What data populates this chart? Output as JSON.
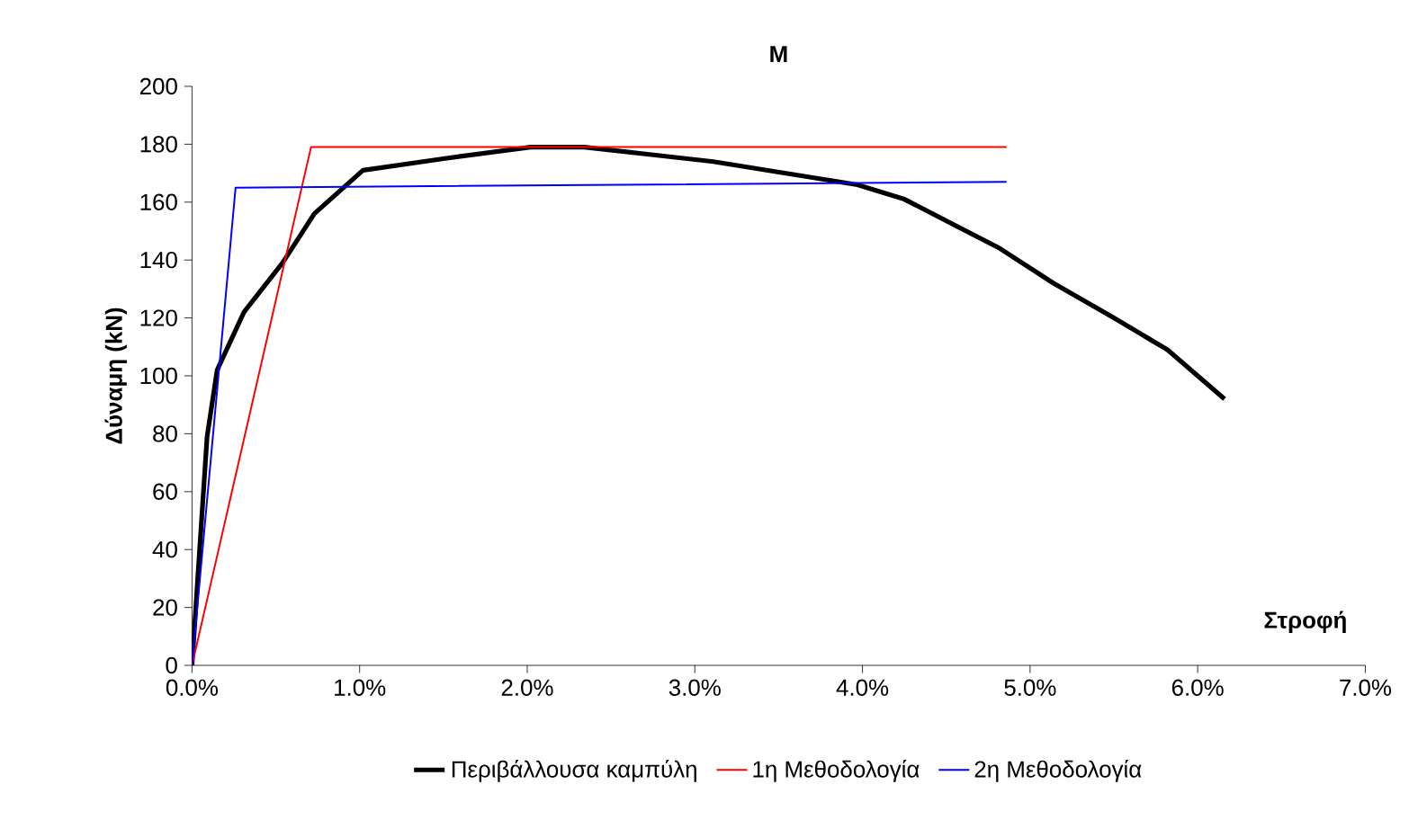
{
  "chart_data": {
    "type": "line",
    "title": "M",
    "xlabel": "Στροφή",
    "ylabel": "Δύναμη (kN)",
    "xlim": [
      0,
      7
    ],
    "ylim": [
      0,
      200
    ],
    "xticks": [
      {
        "value": 0,
        "label": "0.0%"
      },
      {
        "value": 1,
        "label": "1.0%"
      },
      {
        "value": 2,
        "label": "2.0%"
      },
      {
        "value": 3,
        "label": "3.0%"
      },
      {
        "value": 4,
        "label": "4.0%"
      },
      {
        "value": 5,
        "label": "5.0%"
      },
      {
        "value": 6,
        "label": "6.0%"
      },
      {
        "value": 7,
        "label": "7.0%"
      }
    ],
    "yticks": [
      0,
      20,
      40,
      60,
      80,
      100,
      120,
      140,
      160,
      180,
      200
    ],
    "legend": "bottom",
    "marker": "none",
    "line_style": "solid",
    "series": [
      {
        "name": "Περιβάλλουσα καμπύλη",
        "color": "#000000",
        "x": [
          0,
          0.09,
          0.15,
          0.31,
          0.54,
          0.73,
          1.02,
          1.5,
          2.02,
          2.34,
          3.11,
          3.97,
          4.25,
          4.82,
          5.14,
          5.5,
          5.82,
          6.16
        ],
        "values": [
          0,
          79,
          102,
          122,
          139,
          156,
          171,
          175,
          179,
          179,
          174,
          166,
          161,
          144,
          132,
          120,
          109,
          92
        ]
      },
      {
        "name": "1η Μεθοδολογία",
        "color": "#ff0000",
        "x": [
          0,
          0.71,
          4.86
        ],
        "values": [
          0,
          179,
          179
        ]
      },
      {
        "name": "2η Μεθοδολογία",
        "color": "#0000ff",
        "x": [
          0,
          0.26,
          4.86
        ],
        "values": [
          0,
          165,
          167
        ]
      }
    ]
  }
}
